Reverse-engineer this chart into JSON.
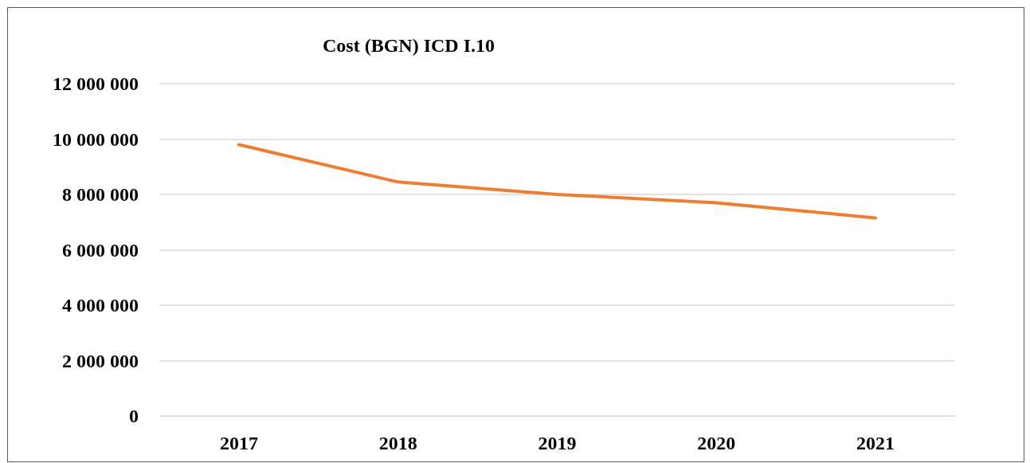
{
  "chart_data": {
    "type": "line",
    "title": "Cost (BGN) ICD I.10",
    "categories": [
      "2017",
      "2018",
      "2019",
      "2020",
      "2021"
    ],
    "series": [
      {
        "color": "#ed7d31",
        "values": [
          9800000,
          8450000,
          8000000,
          7700000,
          7150000
        ]
      }
    ],
    "ylim": [
      0,
      12000000
    ],
    "yticks": [
      0,
      2000000,
      4000000,
      6000000,
      8000000,
      10000000,
      12000000
    ],
    "grid": "y",
    "marker": "none",
    "line_style": "solid"
  }
}
